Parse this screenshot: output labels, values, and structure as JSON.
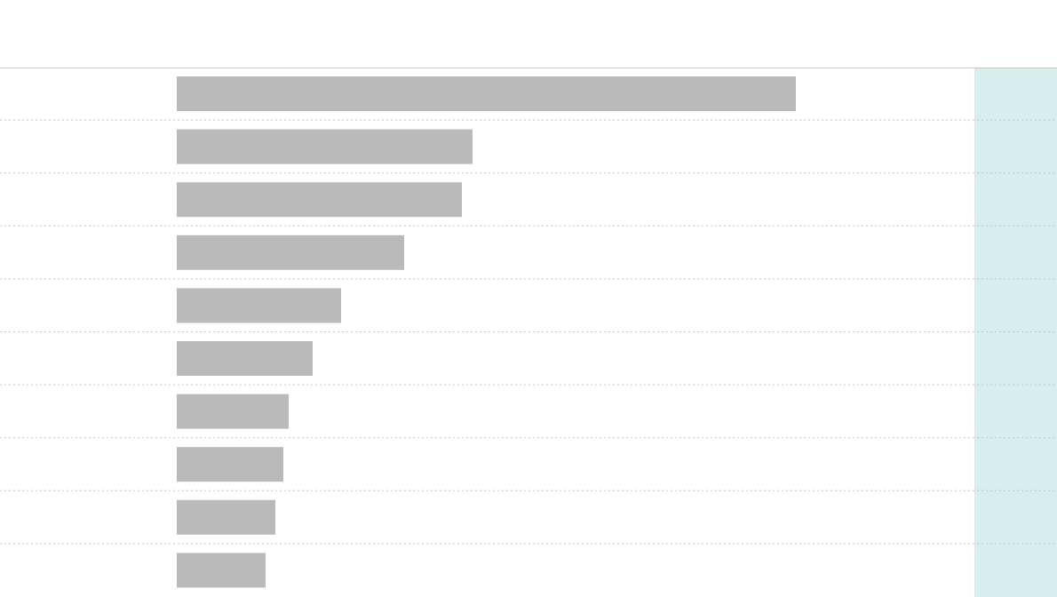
{
  "chart_data": {
    "type": "bar",
    "orientation": "horizontal",
    "categories": [
      null,
      null,
      null,
      null,
      null,
      null,
      null,
      null,
      null,
      null
    ],
    "values": [
      697,
      333,
      321,
      256,
      185,
      153,
      126,
      120,
      111,
      100
    ],
    "color": "#b9b9b9",
    "xlim": [
      0,
      898
    ]
  }
}
